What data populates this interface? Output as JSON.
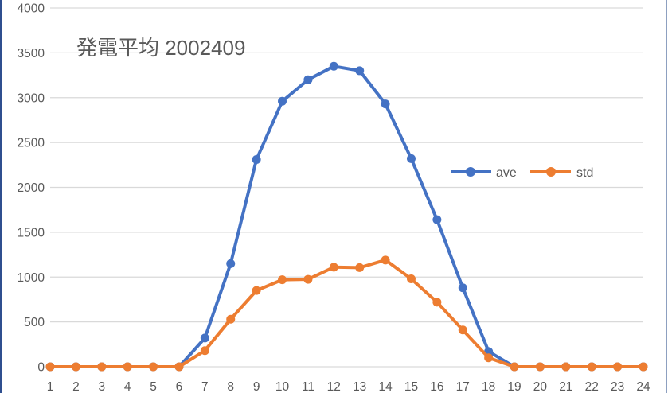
{
  "chart": {
    "title": "発電平均 2002409",
    "legend": [
      {
        "name": "ave",
        "color": "#4472c4"
      },
      {
        "name": "std",
        "color": "#ed7d31"
      }
    ]
  },
  "chart_data": {
    "type": "line",
    "title": "発電平均 2002409",
    "xlabel": "",
    "ylabel": "",
    "categories": [
      "1",
      "2",
      "3",
      "4",
      "5",
      "6",
      "7",
      "8",
      "9",
      "10",
      "11",
      "12",
      "13",
      "14",
      "15",
      "16",
      "17",
      "18",
      "19",
      "20",
      "21",
      "22",
      "23",
      "24"
    ],
    "series": [
      {
        "name": "ave",
        "color": "#4472c4",
        "values": [
          0,
          0,
          0,
          0,
          0,
          0,
          320,
          1150,
          2310,
          2960,
          3200,
          3350,
          3300,
          2930,
          2320,
          1640,
          880,
          170,
          0,
          0,
          0,
          0,
          0,
          0
        ]
      },
      {
        "name": "std",
        "color": "#ed7d31",
        "values": [
          0,
          0,
          0,
          0,
          0,
          0,
          180,
          530,
          850,
          970,
          975,
          1110,
          1105,
          1190,
          980,
          720,
          410,
          100,
          0,
          0,
          0,
          0,
          0,
          0
        ]
      }
    ],
    "ylim": [
      0,
      4000
    ],
    "yticks": [
      0,
      500,
      1000,
      1500,
      2000,
      2500,
      3000,
      3500,
      4000
    ],
    "grid": true,
    "legend_position": "inside-right"
  }
}
